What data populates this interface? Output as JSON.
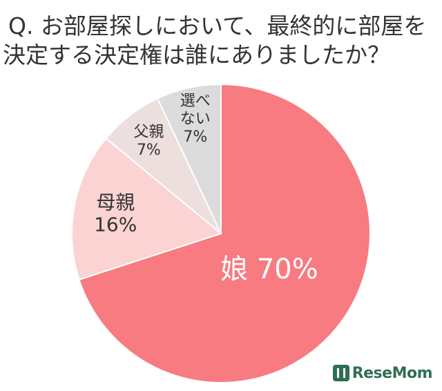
{
  "question": {
    "line1": "Q. お部屋探しにおいて、最終的に部屋を",
    "line2": "決定する決定権は誰にありましたか？"
  },
  "chart_data": {
    "type": "pie",
    "title": "Q. お部屋探しにおいて、最終的に部屋を決定する決定権は誰にありましたか？",
    "unit": "%",
    "slices": [
      {
        "label": "娘",
        "value": 70,
        "display": "70%",
        "color": "#f77b80"
      },
      {
        "label": "母親",
        "value": 16,
        "display": "16%",
        "color": "#fbd3d3"
      },
      {
        "label": "父親",
        "value": 7,
        "display": "7%",
        "color": "#ecdfdd"
      },
      {
        "label": "選べない",
        "value": 7,
        "display": "7%",
        "color": "#dcdcdc"
      }
    ]
  },
  "watermark": {
    "text": "ReseMom",
    "brand_color": "#2e6f53"
  }
}
